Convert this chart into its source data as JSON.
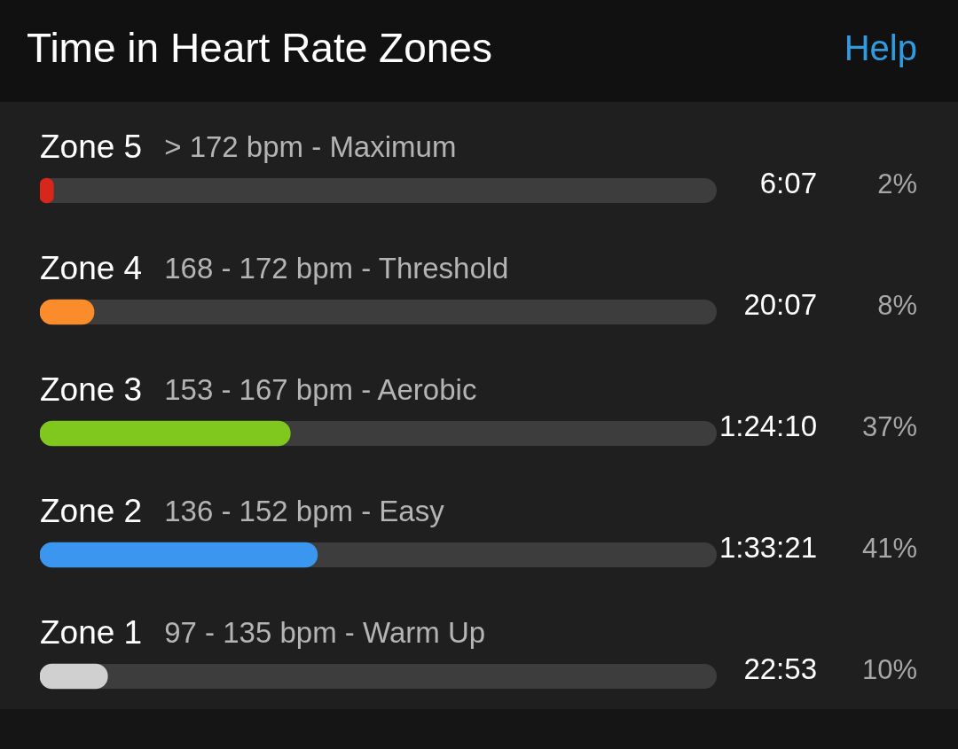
{
  "chart_data": {
    "type": "bar",
    "orientation": "horizontal",
    "title": "Time in Heart Rate Zones",
    "categories": [
      "Zone 5",
      "Zone 4",
      "Zone 3",
      "Zone 2",
      "Zone 1"
    ],
    "values": [
      2,
      8,
      37,
      41,
      10
    ],
    "colors": [
      "#d9261c",
      "#fb8c2c",
      "#80c81e",
      "#3b96f0",
      "#d0d0d0"
    ],
    "value_labels": [
      "2%",
      "8%",
      "37%",
      "41%",
      "10%"
    ],
    "xlim": [
      0,
      100
    ],
    "tick_labels": "y",
    "annotations": [
      "Help",
      "> 172 bpm - Maximum",
      "6:07",
      "168 - 172 bpm - Threshold",
      "20:07",
      "153 - 167 bpm - Aerobic",
      "1:24:10",
      "136 - 152 bpm - Easy",
      "1:33:21",
      "97 - 135 bpm - Warm Up",
      "22:53"
    ]
  }
}
